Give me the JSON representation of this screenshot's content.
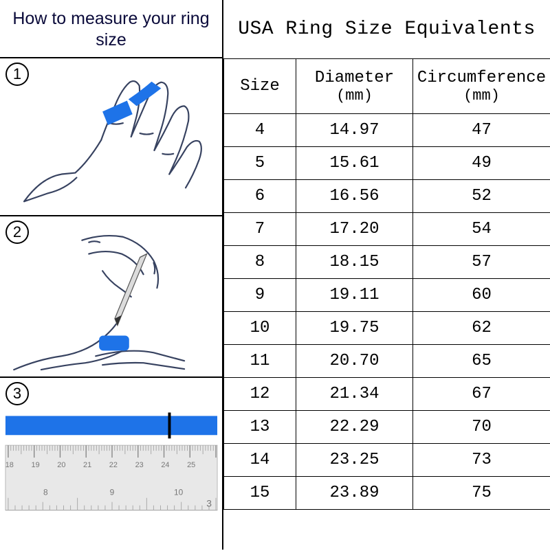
{
  "left": {
    "title": "How to measure your ring size",
    "steps": {
      "s1": "1",
      "s2": "2",
      "s3": "3"
    },
    "colors": {
      "ribbon": "#1e73e8",
      "hand_outline": "#374260",
      "ruler_body": "#e8e8e8",
      "ruler_line": "#9a9a9a"
    },
    "ruler": {
      "top_labels_cm": [
        "18",
        "19",
        "20",
        "21",
        "22",
        "23",
        "24",
        "25"
      ],
      "bottom_labels_in": [
        "8",
        "9",
        "10"
      ],
      "extra_right": "3"
    }
  },
  "right": {
    "title": "USA Ring Size Equivalents",
    "table": {
      "columns": [
        {
          "label": "Size",
          "sub": ""
        },
        {
          "label": "Diameter",
          "sub": "(mm)"
        },
        {
          "label": "Circumference",
          "sub": "(mm)"
        }
      ],
      "rows": [
        [
          "4",
          "14.97",
          "47"
        ],
        [
          "5",
          "15.61",
          "49"
        ],
        [
          "6",
          "16.56",
          "52"
        ],
        [
          "7",
          "17.20",
          "54"
        ],
        [
          "8",
          "18.15",
          "57"
        ],
        [
          "9",
          "19.11",
          "60"
        ],
        [
          "10",
          "19.75",
          "62"
        ],
        [
          "11",
          "20.70",
          "65"
        ],
        [
          "12",
          "21.34",
          "67"
        ],
        [
          "13",
          "22.29",
          "70"
        ],
        [
          "14",
          "23.25",
          "73"
        ],
        [
          "15",
          "23.89",
          "75"
        ]
      ]
    }
  }
}
